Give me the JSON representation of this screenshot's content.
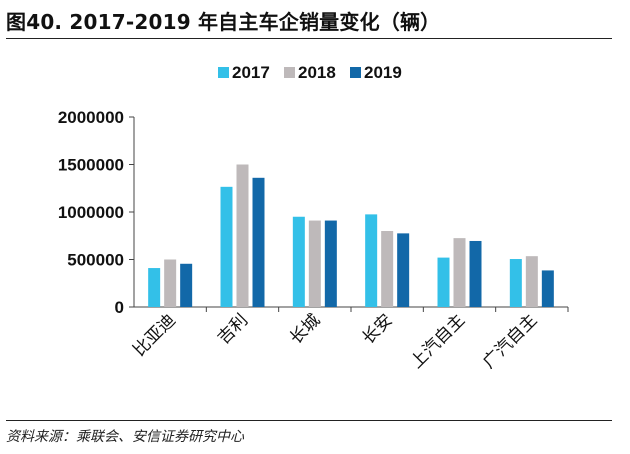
{
  "figure_title": "图40. 2017-2019 年自主车企销量变化（辆）",
  "source": "资料来源：乘联会、安信证券研究中心",
  "chart_data": {
    "type": "bar",
    "categories": [
      "比亚迪",
      "吉利",
      "长城",
      "长安",
      "上汽自主",
      "广汽自主"
    ],
    "series": [
      {
        "name": "2017",
        "color": "#33C0E8",
        "values": [
          410000,
          1265000,
          950000,
          975000,
          520000,
          505000
        ]
      },
      {
        "name": "2018",
        "color": "#BEB9BA",
        "values": [
          500000,
          1500000,
          910000,
          800000,
          725000,
          535000
        ]
      },
      {
        "name": "2019",
        "color": "#1268A8",
        "values": [
          455000,
          1360000,
          910000,
          775000,
          695000,
          385000
        ]
      }
    ],
    "y_ticks": [
      "2000000",
      "1500000",
      "1000000",
      "500000",
      "0"
    ],
    "ylim": [
      0,
      2000000
    ],
    "legend_position": "top-center",
    "grid": false
  }
}
